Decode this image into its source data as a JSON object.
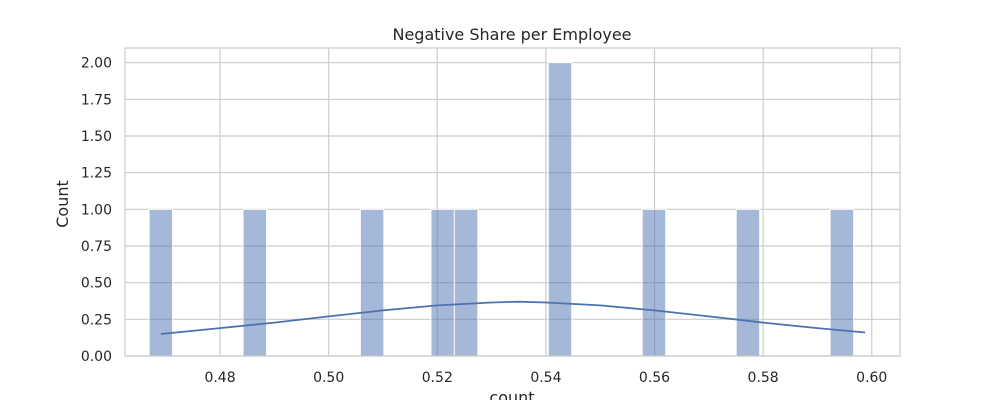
{
  "chart_data": {
    "type": "bar",
    "title": "Negative Share per Employee",
    "xlabel": "count",
    "ylabel": "Count",
    "xlim": [
      0.4625,
      0.6052
    ],
    "ylim": [
      0,
      2.1
    ],
    "xticks": [
      "0.48",
      "0.50",
      "0.52",
      "0.54",
      "0.56",
      "0.58",
      "0.60"
    ],
    "xtick_values": [
      0.48,
      0.5,
      0.52,
      0.54,
      0.56,
      0.58,
      0.6
    ],
    "yticks": [
      "0.00",
      "0.25",
      "0.50",
      "0.75",
      "1.00",
      "1.25",
      "1.50",
      "1.75",
      "2.00"
    ],
    "ytick_values": [
      0,
      0.25,
      0.5,
      0.75,
      1.0,
      1.25,
      1.5,
      1.75,
      2.0
    ],
    "grid": true,
    "bar_width": 0.00433,
    "bins": [
      {
        "x": 0.4691,
        "count": 1
      },
      {
        "x": 0.4864,
        "count": 1
      },
      {
        "x": 0.508,
        "count": 1
      },
      {
        "x": 0.521,
        "count": 1
      },
      {
        "x": 0.5253,
        "count": 1
      },
      {
        "x": 0.5426,
        "count": 2
      },
      {
        "x": 0.5599,
        "count": 1
      },
      {
        "x": 0.5772,
        "count": 1
      },
      {
        "x": 0.5945,
        "count": 1
      }
    ],
    "kde": {
      "x": [
        0.4691,
        0.48,
        0.49,
        0.5,
        0.51,
        0.52,
        0.53,
        0.535,
        0.54,
        0.55,
        0.56,
        0.57,
        0.58,
        0.59,
        0.5988
      ],
      "y": [
        0.15,
        0.19,
        0.228,
        0.27,
        0.311,
        0.345,
        0.365,
        0.37,
        0.365,
        0.345,
        0.311,
        0.27,
        0.228,
        0.19,
        0.16
      ]
    },
    "colors": {
      "bar": "#4c72b0",
      "kde": "#4c72b0",
      "grid": "#cccccc",
      "frame": "#cccccc"
    }
  }
}
